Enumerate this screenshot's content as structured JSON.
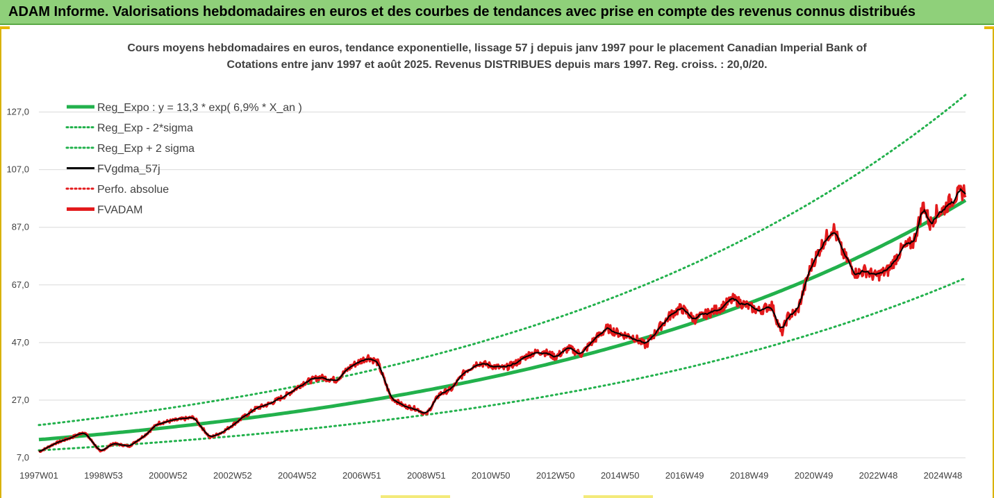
{
  "banner": {
    "title": "ADAM Informe. Valorisations hebdomadaires en euros et des courbes de tendances avec prise en compte des revenus connus distribués"
  },
  "colors": {
    "banner_bg": "#8fd07a",
    "regression": "#22b14c",
    "smoothed": "#000000",
    "adam": "#e31a1c",
    "grid": "#d9d9d9"
  },
  "chart_data": {
    "type": "line",
    "title_line1": "Cours moyens hebdomadaires en euros, tendance exponentielle, lissage 57 j depuis janv 1997  pour le placement Canadian Imperial Bank of",
    "title_line2": "Cotations entre janv 1997 et août 2025. Revenus DISTRIBUES depuis mars 1997. Reg. croiss. : 20,0/20.",
    "xlabel": "",
    "ylabel": "",
    "ylim": [
      7,
      137
    ],
    "yticks": [
      "7,0",
      "27,0",
      "47,0",
      "67,0",
      "87,0",
      "107,0",
      "127,0"
    ],
    "yticks_values": [
      7,
      27,
      47,
      67,
      87,
      107,
      127
    ],
    "xticks": [
      "1997W01",
      "1998W53",
      "2000W52",
      "2002W52",
      "2004W52",
      "2006W51",
      "2008W51",
      "2010W50",
      "2012W50",
      "2014W50",
      "2016W49",
      "2018W49",
      "2020W49",
      "2022W48",
      "2024W48"
    ],
    "xticks_years": [
      1997.0,
      1999.0,
      2001.0,
      2003.0,
      2005.0,
      2007.0,
      2009.0,
      2011.0,
      2013.0,
      2015.0,
      2017.0,
      2019.0,
      2021.0,
      2023.0,
      2025.0
    ],
    "x_range": [
      1997.0,
      2025.7
    ],
    "grid": true,
    "legend_position": "top-left",
    "regression": {
      "a": 13.3,
      "rate": 0.069,
      "start_year": 1997.0,
      "sigma_mult_low": 0.72,
      "sigma_mult_high": 1.38
    },
    "series": [
      {
        "name": "Reg_Expo : y = 13,3 * exp( 6,9% *  X_an )",
        "kind": "regression",
        "style": "solid-thick",
        "color": "#22b14c"
      },
      {
        "name": "Reg_Exp - 2*sigma",
        "kind": "lower",
        "style": "dotted",
        "color": "#22b14c"
      },
      {
        "name": "Reg_Exp + 2 sigma",
        "kind": "upper",
        "style": "dotted",
        "color": "#22b14c"
      },
      {
        "name": "FVgdma_57j",
        "kind": "smoothed",
        "style": "solid",
        "color": "#000000"
      },
      {
        "name": "Perfo. absolue",
        "kind": "perfo",
        "style": "dotted",
        "color": "#e31a1c"
      },
      {
        "name": "FVADAM",
        "kind": "price",
        "style": "solid-thick",
        "color": "#e31a1c",
        "x": [
          1997.0,
          1997.5,
          1998.0,
          1998.4,
          1998.7,
          1998.9,
          1999.3,
          1999.8,
          2000.3,
          2000.7,
          2001.2,
          2001.8,
          2002.3,
          2002.7,
          2003.2,
          2003.7,
          2004.2,
          2004.7,
          2005.2,
          2005.7,
          2006.2,
          2006.7,
          2007.2,
          2007.5,
          2007.9,
          2008.3,
          2008.7,
          2009.0,
          2009.4,
          2009.8,
          2010.2,
          2010.6,
          2011.0,
          2011.4,
          2011.8,
          2012.2,
          2012.6,
          2013.0,
          2013.4,
          2013.8,
          2014.2,
          2014.6,
          2015.0,
          2015.4,
          2015.8,
          2016.2,
          2016.6,
          2016.9,
          2017.3,
          2017.7,
          2018.1,
          2018.5,
          2018.9,
          2019.3,
          2019.7,
          2020.0,
          2020.2,
          2020.5,
          2020.9,
          2021.3,
          2021.6,
          2021.9,
          2022.3,
          2022.6,
          2022.9,
          2023.3,
          2023.7,
          2024.1,
          2024.4,
          2024.6,
          2024.8,
          2025.0,
          2025.3,
          2025.7
        ],
        "values": [
          9,
          12,
          14,
          16,
          12,
          9,
          12,
          11,
          15,
          19,
          20,
          21,
          14,
          16,
          20,
          24,
          26,
          29,
          33,
          35,
          34,
          39,
          42,
          40,
          28,
          25,
          24,
          22,
          29,
          31,
          37,
          40,
          39,
          38,
          40,
          43,
          44,
          42,
          45,
          43,
          48,
          52,
          50,
          49,
          46,
          52,
          57,
          59,
          55,
          57,
          59,
          62,
          60,
          58,
          60,
          50,
          56,
          58,
          73,
          82,
          87,
          78,
          71,
          72,
          70,
          72,
          79,
          82,
          95,
          88,
          92,
          93,
          97,
          100
        ]
      }
    ]
  }
}
